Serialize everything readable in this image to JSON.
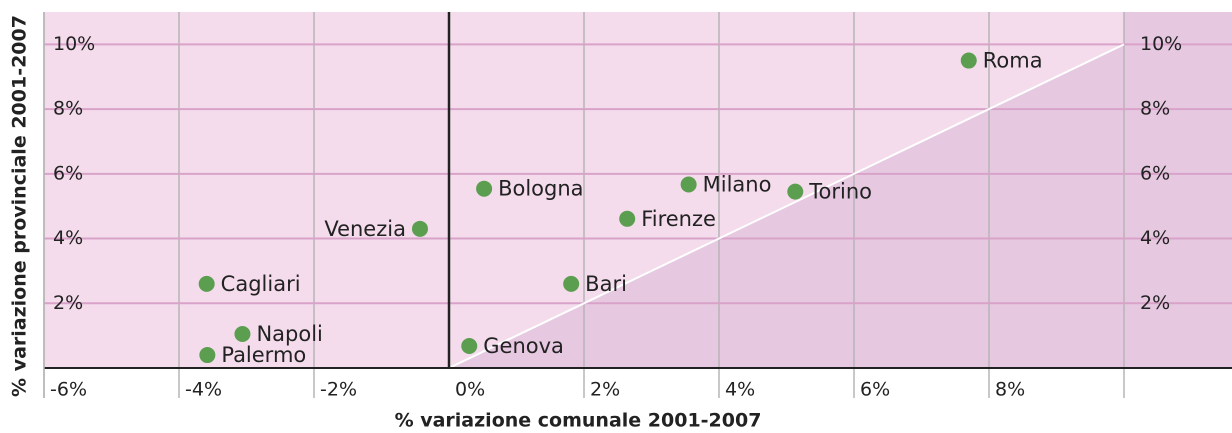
{
  "chart_data": {
    "type": "scatter",
    "xlabel": "% variazione comunale 2001-2007",
    "ylabel": "% variazione provinciale 2001-2007",
    "xlim": [
      -6,
      11.6
    ],
    "ylim": [
      0,
      11
    ],
    "xticks": [
      {
        "value": -6,
        "label": "-6%"
      },
      {
        "value": -4,
        "label": "-4%"
      },
      {
        "value": -2,
        "label": "-2%"
      },
      {
        "value": 0,
        "label": "0%"
      },
      {
        "value": 2,
        "label": "2%"
      },
      {
        "value": 4,
        "label": "4%"
      },
      {
        "value": 6,
        "label": "6%"
      },
      {
        "value": 8,
        "label": "8%"
      }
    ],
    "yticks": [
      {
        "value": 2,
        "label": "2%"
      },
      {
        "value": 4,
        "label": "4%"
      },
      {
        "value": 6,
        "label": "6%"
      },
      {
        "value": 8,
        "label": "8%"
      },
      {
        "value": 10,
        "label": "10%"
      }
    ],
    "grid": true,
    "color": "#5c9e50",
    "labels": [
      "Roma",
      "Milano",
      "Torino",
      "Bologna",
      "Firenze",
      "Venezia",
      "Bari",
      "Genova",
      "Cagliari",
      "Napoli",
      "Palermo"
    ],
    "x": [
      7.7,
      3.55,
      5.13,
      0.52,
      2.64,
      -0.43,
      1.81,
      0.3,
      -3.59,
      -3.06,
      -3.58
    ],
    "y": [
      9.5,
      5.67,
      5.45,
      5.54,
      4.61,
      4.3,
      2.6,
      0.68,
      2.6,
      1.05,
      0.4
    ]
  }
}
